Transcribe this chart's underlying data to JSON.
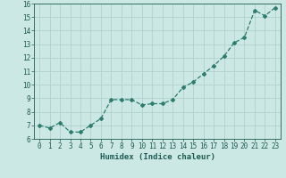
{
  "x": [
    0,
    1,
    2,
    3,
    4,
    5,
    6,
    7,
    8,
    9,
    10,
    11,
    12,
    13,
    14,
    15,
    16,
    17,
    18,
    19,
    20,
    21,
    22,
    23
  ],
  "y": [
    7.0,
    6.8,
    7.2,
    6.5,
    6.5,
    7.0,
    7.5,
    8.9,
    8.9,
    8.9,
    8.5,
    8.6,
    8.6,
    8.9,
    9.8,
    10.2,
    10.8,
    11.4,
    12.1,
    13.1,
    13.5,
    15.5,
    15.1,
    15.7
  ],
  "line_color": "#2d7d6e",
  "marker": "D",
  "marker_size": 2,
  "bg_color": "#cce8e4",
  "grid_color": "#aaceca",
  "xlabel": "Humidex (Indice chaleur)",
  "ylim": [
    6,
    16
  ],
  "xlim": [
    -0.5,
    23.5
  ],
  "yticks": [
    6,
    7,
    8,
    9,
    10,
    11,
    12,
    13,
    14,
    15,
    16
  ],
  "xticks": [
    0,
    1,
    2,
    3,
    4,
    5,
    6,
    7,
    8,
    9,
    10,
    11,
    12,
    13,
    14,
    15,
    16,
    17,
    18,
    19,
    20,
    21,
    22,
    23
  ],
  "axis_color": "#1e5c52",
  "label_fontsize": 6.5,
  "tick_fontsize": 5.5,
  "linewidth": 0.9
}
